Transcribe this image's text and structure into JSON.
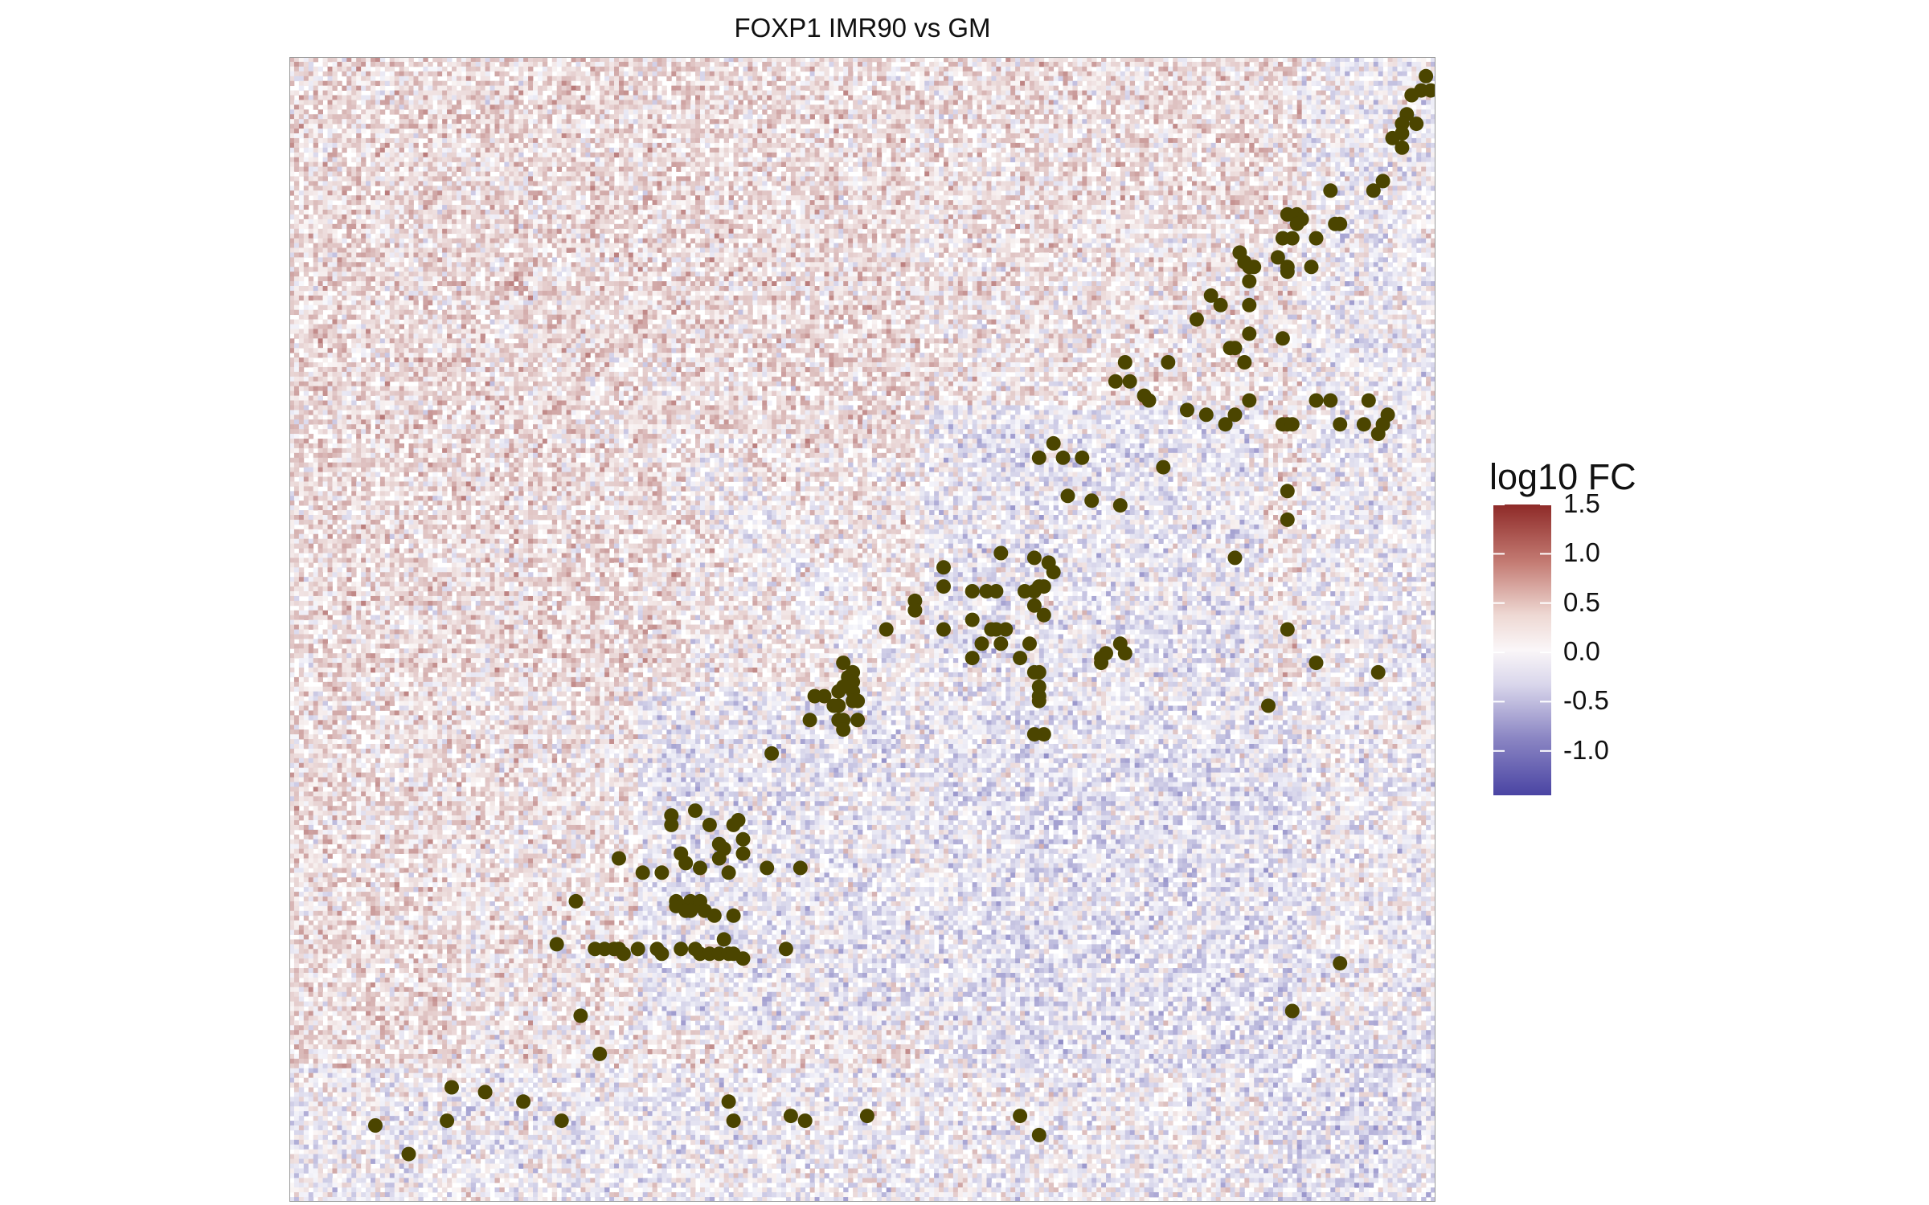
{
  "chart_data": {
    "type": "heatmap",
    "title": "FOXP1 IMR90 vs GM",
    "xlabel": "",
    "ylabel": "",
    "matrix_bins": 240,
    "colorscale": {
      "low": "#4A44A3",
      "mid": "#FFFFFF",
      "high": "#8E2A28",
      "range": [
        -1.45,
        1.5
      ]
    },
    "legend": {
      "title": "log10 FC",
      "position": "right",
      "ticks": [
        1.5,
        1.0,
        0.5,
        0.0,
        -0.5,
        -1.0
      ],
      "tick_labels": [
        "1.5",
        "1.0",
        "0.5",
        "0.0",
        "-0.5",
        "-1.0"
      ]
    },
    "grid": false,
    "point_color": "#4B4500",
    "points_note": "Point coordinates are read off the heatmap in matrix bin units (0-240, origin bottom-left)",
    "points": [
      [
        238,
        236
      ],
      [
        237,
        233
      ],
      [
        239,
        233
      ],
      [
        235,
        232
      ],
      [
        234,
        228
      ],
      [
        233,
        226
      ],
      [
        236,
        226
      ],
      [
        233,
        224
      ],
      [
        231,
        223
      ],
      [
        229,
        214
      ],
      [
        233,
        221
      ],
      [
        227,
        212
      ],
      [
        218,
        212
      ],
      [
        209,
        207
      ],
      [
        211,
        207
      ],
      [
        212,
        206
      ],
      [
        211,
        205
      ],
      [
        219,
        205
      ],
      [
        220,
        205
      ],
      [
        208,
        202
      ],
      [
        210,
        202
      ],
      [
        215,
        202
      ],
      [
        199,
        199
      ],
      [
        207,
        198
      ],
      [
        200,
        197
      ],
      [
        201,
        196
      ],
      [
        202,
        196
      ],
      [
        209,
        196
      ],
      [
        214,
        196
      ],
      [
        209,
        195
      ],
      [
        201,
        193
      ],
      [
        193,
        190
      ],
      [
        195,
        188
      ],
      [
        201,
        188
      ],
      [
        190,
        185
      ],
      [
        201,
        182
      ],
      [
        197,
        179
      ],
      [
        198,
        179
      ],
      [
        208,
        181
      ],
      [
        200,
        176
      ],
      [
        175,
        176
      ],
      [
        184,
        176
      ],
      [
        173,
        172
      ],
      [
        176,
        172
      ],
      [
        179,
        169
      ],
      [
        201,
        168
      ],
      [
        215,
        168
      ],
      [
        218,
        168
      ],
      [
        226,
        168
      ],
      [
        180,
        168
      ],
      [
        188,
        166
      ],
      [
        192,
        165
      ],
      [
        198,
        165
      ],
      [
        196,
        163
      ],
      [
        208,
        163
      ],
      [
        209,
        163
      ],
      [
        210,
        163
      ],
      [
        220,
        163
      ],
      [
        225,
        163
      ],
      [
        229,
        163
      ],
      [
        230,
        165
      ],
      [
        228,
        161
      ],
      [
        160,
        159
      ],
      [
        157,
        156
      ],
      [
        162,
        156
      ],
      [
        166,
        156
      ],
      [
        183,
        154
      ],
      [
        209,
        149
      ],
      [
        163,
        148
      ],
      [
        168,
        147
      ],
      [
        174,
        146
      ],
      [
        209,
        143
      ],
      [
        198,
        135
      ],
      [
        149,
        136
      ],
      [
        156,
        135
      ],
      [
        159,
        134
      ],
      [
        137,
        133
      ],
      [
        160,
        132
      ],
      [
        137,
        129
      ],
      [
        143,
        128
      ],
      [
        146,
        128
      ],
      [
        148,
        128
      ],
      [
        154,
        128
      ],
      [
        156,
        128
      ],
      [
        157,
        129
      ],
      [
        158,
        129
      ],
      [
        131,
        126
      ],
      [
        156,
        125
      ],
      [
        131,
        124
      ],
      [
        158,
        123
      ],
      [
        143,
        122
      ],
      [
        125,
        120
      ],
      [
        137,
        120
      ],
      [
        147,
        120
      ],
      [
        148,
        120
      ],
      [
        150,
        120
      ],
      [
        145,
        117
      ],
      [
        155,
        117
      ],
      [
        149,
        117
      ],
      [
        209,
        120
      ],
      [
        174,
        117
      ],
      [
        175,
        115
      ],
      [
        170,
        113
      ],
      [
        171,
        115
      ],
      [
        153,
        114
      ],
      [
        170,
        114
      ],
      [
        143,
        114
      ],
      [
        215,
        113
      ],
      [
        116,
        113
      ],
      [
        118,
        111
      ],
      [
        117,
        110
      ],
      [
        118,
        109
      ],
      [
        116,
        108
      ],
      [
        115,
        107
      ],
      [
        118,
        107
      ],
      [
        110,
        106
      ],
      [
        112,
        106
      ],
      [
        118,
        105
      ],
      [
        119,
        105
      ],
      [
        114,
        104
      ],
      [
        115,
        104
      ],
      [
        157,
        108
      ],
      [
        156,
        111
      ],
      [
        157,
        111
      ],
      [
        157,
        106
      ],
      [
        157,
        105
      ],
      [
        228,
        111
      ],
      [
        205,
        104
      ],
      [
        109,
        101
      ],
      [
        115,
        101
      ],
      [
        116,
        101
      ],
      [
        119,
        101
      ],
      [
        116,
        99
      ],
      [
        158,
        98
      ],
      [
        156,
        98
      ],
      [
        101,
        94
      ],
      [
        80,
        81
      ],
      [
        85,
        82
      ],
      [
        94,
        80
      ],
      [
        88,
        79
      ],
      [
        93,
        79
      ],
      [
        80,
        79
      ],
      [
        95,
        76
      ],
      [
        90,
        75
      ],
      [
        91,
        74
      ],
      [
        82,
        73
      ],
      [
        95,
        73
      ],
      [
        83,
        71
      ],
      [
        86,
        70
      ],
      [
        69,
        72
      ],
      [
        90,
        72
      ],
      [
        107,
        70
      ],
      [
        74,
        69
      ],
      [
        78,
        69
      ],
      [
        92,
        69
      ],
      [
        100,
        70
      ],
      [
        60,
        63
      ],
      [
        84,
        63
      ],
      [
        86,
        63
      ],
      [
        81,
        63
      ],
      [
        81,
        62
      ],
      [
        82,
        62
      ],
      [
        86,
        62
      ],
      [
        84,
        61
      ],
      [
        87,
        61
      ],
      [
        83,
        61
      ],
      [
        89,
        60
      ],
      [
        93,
        60
      ],
      [
        56,
        54
      ],
      [
        91,
        55
      ],
      [
        64,
        53
      ],
      [
        66,
        53
      ],
      [
        68,
        53
      ],
      [
        69,
        53
      ],
      [
        70,
        52
      ],
      [
        73,
        53
      ],
      [
        77,
        53
      ],
      [
        78,
        52
      ],
      [
        82,
        53
      ],
      [
        85,
        53
      ],
      [
        86,
        52
      ],
      [
        88,
        52
      ],
      [
        90,
        52
      ],
      [
        92,
        52
      ],
      [
        93,
        52
      ],
      [
        95,
        51
      ],
      [
        104,
        53
      ],
      [
        61,
        39
      ],
      [
        65,
        31
      ],
      [
        210,
        40
      ],
      [
        220,
        50
      ],
      [
        34,
        24
      ],
      [
        41,
        23
      ],
      [
        49,
        21
      ],
      [
        57,
        17
      ],
      [
        18,
        16
      ],
      [
        33,
        17
      ],
      [
        92,
        21
      ],
      [
        93,
        17
      ],
      [
        105,
        18
      ],
      [
        108,
        17
      ],
      [
        121,
        18
      ],
      [
        153,
        18
      ],
      [
        157,
        14
      ],
      [
        25,
        10
      ]
    ]
  }
}
